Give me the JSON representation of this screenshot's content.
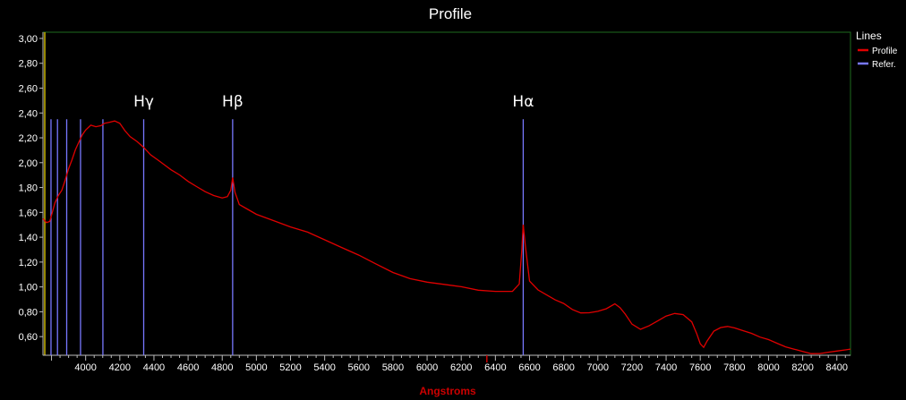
{
  "chart_data": {
    "type": "line",
    "title": "Profile",
    "xlabel": "Angstroms",
    "ylabel": "",
    "xlim": [
      3750,
      8480
    ],
    "ylim": [
      0.45,
      3.05
    ],
    "grid": false,
    "legend_placement": "right",
    "legend_title": "Lines",
    "x_ticks": [
      4000,
      4200,
      4400,
      4600,
      4800,
      5000,
      5200,
      5400,
      5600,
      5800,
      6000,
      6200,
      6400,
      6600,
      6800,
      7000,
      7200,
      7400,
      7600,
      7800,
      8000,
      8200,
      8400
    ],
    "x_tick_labels": [
      "4000",
      "4200",
      "4400",
      "4600",
      "4800",
      "5000",
      "5200",
      "5400",
      "5600",
      "5800",
      "6000",
      "6200",
      "6400",
      "6600",
      "6800",
      "7000",
      "7200",
      "7400",
      "7600",
      "7800",
      "8000",
      "8200",
      "8400"
    ],
    "y_ticks": [
      0.6,
      0.8,
      1.0,
      1.2,
      1.4,
      1.6,
      1.8,
      2.0,
      2.2,
      2.4,
      2.6,
      2.8,
      3.0
    ],
    "y_tick_labels": [
      "0,60",
      "0,80",
      "1,00",
      "1,20",
      "1,40",
      "1,60",
      "1,80",
      "2,00",
      "2,20",
      "2,40",
      "2,60",
      "2,80",
      "3,00"
    ],
    "series": [
      {
        "name": "Profile",
        "color": "#e00000",
        "x": [
          3750,
          3770,
          3790,
          3800,
          3820,
          3840,
          3860,
          3880,
          3900,
          3920,
          3940,
          3960,
          3980,
          4000,
          4030,
          4060,
          4090,
          4110,
          4140,
          4170,
          4200,
          4230,
          4260,
          4300,
          4340,
          4380,
          4420,
          4460,
          4500,
          4550,
          4600,
          4650,
          4700,
          4750,
          4800,
          4830,
          4850,
          4861,
          4875,
          4900,
          4950,
          5000,
          5100,
          5200,
          5300,
          5400,
          5500,
          5600,
          5700,
          5800,
          5900,
          6000,
          6100,
          6200,
          6300,
          6400,
          6500,
          6540,
          6555,
          6563,
          6575,
          6600,
          6650,
          6700,
          6750,
          6800,
          6850,
          6900,
          6950,
          7000,
          7050,
          7100,
          7130,
          7160,
          7200,
          7250,
          7300,
          7350,
          7400,
          7450,
          7500,
          7550,
          7580,
          7600,
          7620,
          7640,
          7680,
          7720,
          7760,
          7800,
          7850,
          7900,
          7950,
          8000,
          8050,
          8100,
          8150,
          8200,
          8250,
          8300,
          8350,
          8400,
          8450,
          8480
        ],
        "values": [
          1.55,
          1.52,
          1.53,
          1.58,
          1.68,
          1.74,
          1.78,
          1.86,
          1.95,
          2.02,
          2.1,
          2.16,
          2.22,
          2.26,
          2.3,
          2.29,
          2.3,
          2.32,
          2.33,
          2.34,
          2.32,
          2.26,
          2.21,
          2.17,
          2.12,
          2.06,
          2.02,
          1.98,
          1.94,
          1.9,
          1.85,
          1.81,
          1.77,
          1.74,
          1.72,
          1.73,
          1.78,
          1.88,
          1.76,
          1.66,
          1.62,
          1.58,
          1.53,
          1.48,
          1.44,
          1.38,
          1.32,
          1.26,
          1.19,
          1.12,
          1.07,
          1.04,
          1.02,
          1.0,
          0.97,
          0.96,
          0.96,
          1.02,
          1.3,
          1.5,
          1.34,
          1.05,
          0.98,
          0.94,
          0.9,
          0.87,
          0.82,
          0.79,
          0.79,
          0.8,
          0.82,
          0.86,
          0.83,
          0.78,
          0.7,
          0.66,
          0.69,
          0.73,
          0.77,
          0.79,
          0.78,
          0.72,
          0.62,
          0.54,
          0.51,
          0.56,
          0.64,
          0.67,
          0.68,
          0.67,
          0.65,
          0.63,
          0.6,
          0.58,
          0.55,
          0.52,
          0.5,
          0.48,
          0.46,
          0.46,
          0.47,
          0.48,
          0.49,
          0.5
        ]
      },
      {
        "name": "Refer.",
        "color": "#7878ff",
        "line_positions": [
          3797,
          3835,
          3889,
          3970,
          4101,
          4340,
          4861,
          6563
        ],
        "line_top": 2.35
      }
    ],
    "annotations": [
      {
        "text": "Hγ",
        "x": 4340
      },
      {
        "text": "Hβ",
        "x": 4861
      },
      {
        "text": "Hα",
        "x": 6563
      }
    ],
    "colors": {
      "background": "#000000",
      "frame": "#1e6b1e",
      "axis_text": "#ffffff",
      "xlabel": "#cc0000",
      "left_marker": "#c8b400",
      "cursor": "#cc0000"
    }
  }
}
